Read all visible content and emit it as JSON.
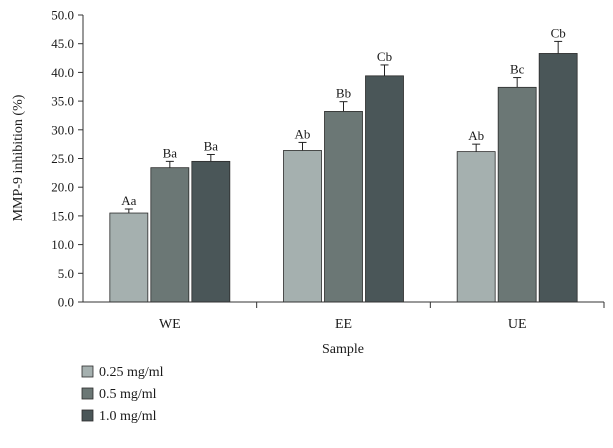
{
  "chart_data": {
    "type": "bar",
    "title": "",
    "xlabel": "Sample",
    "ylabel": "MMP-9 inhibition (%)",
    "ylim": [
      0,
      50
    ],
    "y_ticks": [
      "0.0",
      "5.0",
      "10.0",
      "15.0",
      "20.0",
      "25.0",
      "30.0",
      "35.0",
      "40.0",
      "45.0",
      "50.0"
    ],
    "y_tick_values": [
      0,
      5,
      10,
      15,
      20,
      25,
      30,
      35,
      40,
      45,
      50
    ],
    "categories": [
      "WE",
      "EE",
      "UE"
    ],
    "grid": false,
    "legend_position": "bottom-left",
    "series": [
      {
        "name": "0.25 mg/ml",
        "color": "#a5b0af",
        "values": [
          15.5,
          26.4,
          26.2
        ],
        "errors": [
          0.7,
          1.4,
          1.3
        ],
        "labels": [
          "Aa",
          "Ab",
          "Ab"
        ]
      },
      {
        "name": "0.5 mg/ml",
        "color": "#6b7775",
        "values": [
          23.4,
          33.2,
          37.4
        ],
        "errors": [
          1.1,
          1.7,
          1.7
        ],
        "labels": [
          "Ba",
          "Bb",
          "Bc"
        ]
      },
      {
        "name": "1.0 mg/ml",
        "color": "#4a5658",
        "values": [
          24.5,
          39.4,
          43.3
        ],
        "errors": [
          1.2,
          1.9,
          2.1
        ],
        "labels": [
          "Ba",
          "Cb",
          "Cb"
        ]
      }
    ]
  }
}
